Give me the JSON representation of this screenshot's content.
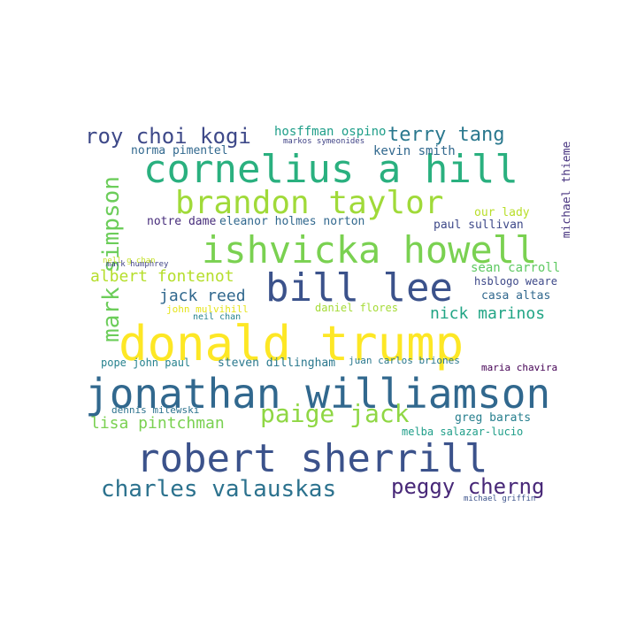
{
  "words": [
    {
      "text": "donald trump",
      "color": "#fde725"
    },
    {
      "text": "jonathan williamson",
      "color": "#31688e"
    },
    {
      "text": "robert sherrill",
      "color": "#3b528b"
    },
    {
      "text": "cornelius a hill",
      "color": "#2ab07f"
    },
    {
      "text": "ishvicka howell",
      "color": "#7ad151"
    },
    {
      "text": "bill lee",
      "color": "#3b528b"
    },
    {
      "text": "brandon taylor",
      "color": "#a0da39"
    },
    {
      "text": "mark simpson",
      "color": "#6ccd5a"
    },
    {
      "text": "charles valauskas",
      "color": "#2c728e"
    },
    {
      "text": "peggy cherng",
      "color": "#482878"
    },
    {
      "text": "paige jack",
      "color": "#8fd744"
    },
    {
      "text": "roy choi kogi",
      "color": "#3e4989"
    },
    {
      "text": "terry tang",
      "color": "#2a788e"
    },
    {
      "text": "lisa pintchman",
      "color": "#7ad151"
    },
    {
      "text": "albert fontenot",
      "color": "#b5de2b"
    },
    {
      "text": "jack reed",
      "color": "#31688e"
    },
    {
      "text": "nick marinos",
      "color": "#21a585"
    },
    {
      "text": "michael thieme",
      "color": "#46327e"
    },
    {
      "text": "hosffman ospino",
      "color": "#1f9e89"
    },
    {
      "text": "norma pimentel",
      "color": "#31688e"
    },
    {
      "text": "kevin smith",
      "color": "#31688e"
    },
    {
      "text": "eleanor holmes norton",
      "color": "#31688e"
    },
    {
      "text": "notre dame",
      "color": "#472d7b"
    },
    {
      "text": "our lady",
      "color": "#b8de29"
    },
    {
      "text": "paul sullivan",
      "color": "#3e4989"
    },
    {
      "text": "sean carroll",
      "color": "#5ec962"
    },
    {
      "text": "hsblogo weare",
      "color": "#3e4989"
    },
    {
      "text": "casa altas",
      "color": "#31688e"
    },
    {
      "text": "daniel flores",
      "color": "#a5db36"
    },
    {
      "text": "john mulvihill",
      "color": "#e5e419"
    },
    {
      "text": "steven dillingham",
      "color": "#2a788e"
    },
    {
      "text": "pope john paul",
      "color": "#26828e"
    },
    {
      "text": "juan carlos briones",
      "color": "#2a788e"
    },
    {
      "text": "maria chavira",
      "color": "#440154"
    },
    {
      "text": "greg barats",
      "color": "#277f8e"
    },
    {
      "text": "dennis milewski",
      "color": "#2c728e"
    },
    {
      "text": "melba salazar-lucio",
      "color": "#1f9e89"
    },
    {
      "text": "mark humphrey",
      "color": "#414487"
    },
    {
      "text": "nell g chan",
      "color": "#c2df23"
    },
    {
      "text": "neil chan",
      "color": "#26828e"
    },
    {
      "text": "michael griffin",
      "color": "#3b528b"
    },
    {
      "text": "markos symeonides",
      "color": "#414487"
    }
  ]
}
